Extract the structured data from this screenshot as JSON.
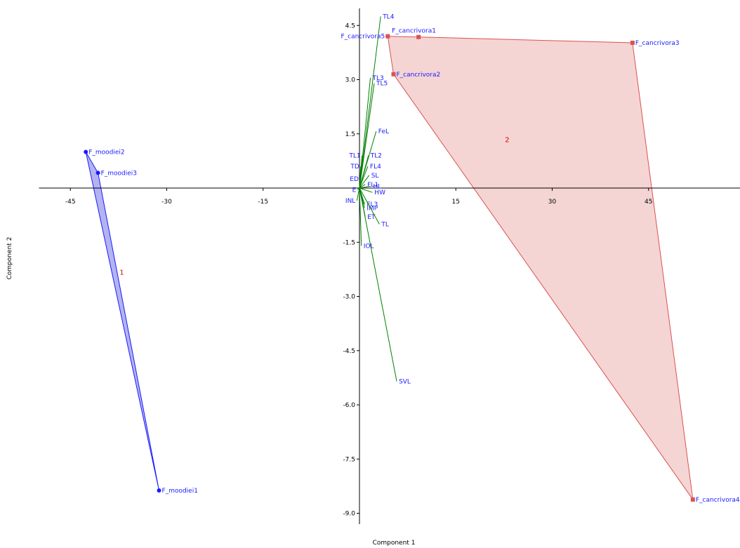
{
  "chart_data": {
    "type": "scatter",
    "xlabel": "Component 1",
    "ylabel": "Component 2",
    "xlim": [
      -50,
      58
    ],
    "ylim": [
      -9.3,
      4.95
    ],
    "x_ticks": [
      -45,
      -30,
      -15,
      15,
      30,
      45
    ],
    "y_ticks": [
      4.5,
      3.0,
      1.5,
      -1.5,
      -3.0,
      -4.5,
      -6.0,
      -7.5,
      -9.0
    ],
    "groups": [
      {
        "name": "1",
        "color": "#1a1aff",
        "fill": "#9999ee",
        "marker": "circle",
        "label_pos": [
          -37,
          -2.4
        ],
        "points": [
          {
            "label": "F_moodiei2",
            "x": -42.6,
            "y": 1.0
          },
          {
            "label": "F_moodiei3",
            "x": -40.7,
            "y": 0.42
          },
          {
            "label": "F_moodiei1",
            "x": -31.2,
            "y": -8.37
          }
        ]
      },
      {
        "name": "2",
        "color": "#d9534f",
        "fill": "#f2c6c6",
        "marker": "square",
        "label_pos": [
          23,
          1.27
        ],
        "points": [
          {
            "label": "F_cancrivora5",
            "x": 4.4,
            "y": 4.2
          },
          {
            "label": "F_cancrivora1",
            "x": 9.2,
            "y": 4.18
          },
          {
            "label": "F_cancrivora2",
            "x": 5.3,
            "y": 3.15
          },
          {
            "label": "F_cancrivora3",
            "x": 42.5,
            "y": 4.02
          },
          {
            "label": "F_cancrivora4",
            "x": 51.9,
            "y": -8.62
          }
        ]
      }
    ],
    "loadings_color": "#008000",
    "loadings": [
      {
        "label": "TL4",
        "x": 3.3,
        "y": 4.75
      },
      {
        "label": "TL3",
        "x": 1.7,
        "y": 3.05
      },
      {
        "label": "TL5",
        "x": 2.3,
        "y": 2.9
      },
      {
        "label": "FeL",
        "x": 2.6,
        "y": 1.57
      },
      {
        "label": "TL1",
        "x": 0.4,
        "y": 0.9
      },
      {
        "label": "TL2",
        "x": 1.4,
        "y": 0.9
      },
      {
        "label": "TD",
        "x": 0.2,
        "y": 0.6
      },
      {
        "label": "FL4",
        "x": 1.3,
        "y": 0.6
      },
      {
        "label": "SL",
        "x": 1.5,
        "y": 0.35
      },
      {
        "label": "ED",
        "x": 0.1,
        "y": 0.25
      },
      {
        "label": "FL1",
        "x": 0.9,
        "y": 0.1
      },
      {
        "label": "HL",
        "x": 1.8,
        "y": 0.05
      },
      {
        "label": "E",
        "x": -0.3,
        "y": -0.05
      },
      {
        "label": "HW",
        "x": 2.0,
        "y": -0.12
      },
      {
        "label": "INL",
        "x": -0.4,
        "y": -0.35
      },
      {
        "label": "FL3",
        "x": 0.8,
        "y": -0.45
      },
      {
        "label": "IMP",
        "x": 0.8,
        "y": -0.55
      },
      {
        "label": "ET",
        "x": 0.9,
        "y": -0.8
      },
      {
        "label": "TL",
        "x": 3.1,
        "y": -1.0
      },
      {
        "label": "IOL",
        "x": 0.3,
        "y": -1.6
      },
      {
        "label": "SVL",
        "x": 5.8,
        "y": -5.35
      }
    ]
  }
}
